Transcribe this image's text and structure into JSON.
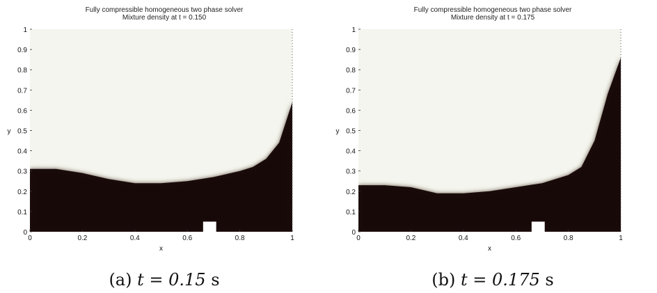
{
  "chart_data": [
    {
      "type": "heatmap",
      "title": "Fully compressible homogeneous two phase solver",
      "subtitle": "Mixture density at t = 0.150",
      "xlabel": "x",
      "ylabel": "y",
      "xlim": [
        0,
        1
      ],
      "ylim": [
        0,
        1
      ],
      "x_ticks": [
        "0",
        "0.2",
        "0.4",
        "0.6",
        "0.8",
        "1"
      ],
      "y_ticks": [
        "0",
        "0.1",
        "0.2",
        "0.3",
        "0.4",
        "0.5",
        "0.6",
        "0.7",
        "0.8",
        "0.9",
        "1"
      ],
      "interface_y": {
        "x": [
          0,
          0.1,
          0.2,
          0.3,
          0.4,
          0.5,
          0.6,
          0.7,
          0.8,
          0.85,
          0.9,
          0.95,
          1.0
        ],
        "y": [
          0.31,
          0.31,
          0.29,
          0.26,
          0.24,
          0.24,
          0.25,
          0.27,
          0.3,
          0.32,
          0.36,
          0.44,
          0.64
        ]
      },
      "obstacle": {
        "x": [
          0.66,
          0.71
        ],
        "y": [
          0,
          0.05
        ]
      },
      "colors": {
        "dense": "#150606",
        "light": "#f4f5ee",
        "edge": "#6a5a4c"
      },
      "caption_label": "(a)",
      "caption_math": "t = 0.15",
      "caption_unit": "s"
    },
    {
      "type": "heatmap",
      "title": "Fully compressible homogeneous two phase solver",
      "subtitle": "Mixture density at t = 0.175",
      "xlabel": "x",
      "ylabel": "y",
      "xlim": [
        0,
        1
      ],
      "ylim": [
        0,
        1
      ],
      "x_ticks": [
        "0",
        "0.2",
        "0.4",
        "0.6",
        "0.8",
        "1"
      ],
      "y_ticks": [
        "0",
        "0.1",
        "0.2",
        "0.3",
        "0.4",
        "0.5",
        "0.6",
        "0.7",
        "0.8",
        "0.9",
        "1"
      ],
      "interface_y": {
        "x": [
          0,
          0.1,
          0.2,
          0.3,
          0.4,
          0.5,
          0.6,
          0.7,
          0.8,
          0.85,
          0.9,
          0.95,
          1.0
        ],
        "y": [
          0.23,
          0.23,
          0.22,
          0.19,
          0.19,
          0.2,
          0.22,
          0.24,
          0.28,
          0.32,
          0.45,
          0.68,
          0.86
        ]
      },
      "obstacle": {
        "x": [
          0.66,
          0.71
        ],
        "y": [
          0,
          0.05
        ]
      },
      "colors": {
        "dense": "#150606",
        "light": "#f4f5ee",
        "edge": "#6a5a4c"
      },
      "caption_label": "(b)",
      "caption_math": "t = 0.175",
      "caption_unit": "s"
    }
  ]
}
